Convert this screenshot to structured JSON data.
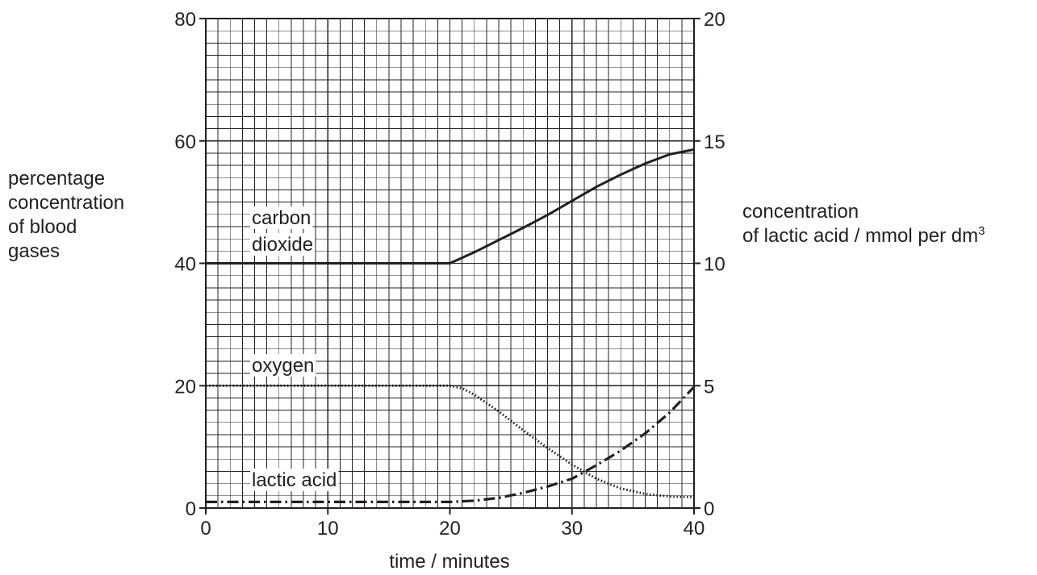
{
  "chart_data": {
    "type": "line",
    "xlabel": "time / minutes",
    "ylabel_left": [
      "percentage",
      "concentration",
      "of blood",
      "gases"
    ],
    "ylabel_right": [
      "concentration",
      "of lactic acid / mmol per dm",
      "3"
    ],
    "x_range": [
      0,
      40
    ],
    "y_left_range": [
      0,
      80
    ],
    "y_right_range": [
      0,
      20
    ],
    "x_ticks": [
      "0",
      "10",
      "20",
      "30",
      "40"
    ],
    "y_left_ticks": [
      "0",
      "20",
      "40",
      "60",
      "80"
    ],
    "y_right_ticks": [
      "0",
      "5",
      "10",
      "15",
      "20"
    ],
    "grid": true,
    "series": [
      {
        "name": "carbon dioxide",
        "label": [
          "carbon",
          "dioxide"
        ],
        "axis": "left",
        "style": "solid",
        "x": [
          0,
          5,
          10,
          15,
          20,
          22,
          24,
          26,
          28,
          30,
          32,
          34,
          36,
          38,
          40
        ],
        "y": [
          40,
          40,
          40,
          40,
          40,
          41.8,
          43.8,
          45.8,
          47.9,
          50.2,
          52.5,
          54.5,
          56.3,
          57.8,
          58.6
        ]
      },
      {
        "name": "oxygen",
        "label": [
          "oxygen"
        ],
        "axis": "left",
        "style": "dotted",
        "x": [
          0,
          5,
          10,
          15,
          20,
          21,
          22,
          24,
          26,
          28,
          30,
          32,
          34,
          36,
          38,
          40
        ],
        "y": [
          20,
          20,
          20,
          20,
          20,
          19.6,
          18.5,
          15.8,
          12.7,
          9.8,
          7.1,
          4.8,
          3.2,
          2.3,
          1.9,
          1.8
        ]
      },
      {
        "name": "lactic acid",
        "label": [
          "lactic acid"
        ],
        "axis": "right",
        "style": "dash-dot",
        "x": [
          0,
          5,
          10,
          15,
          20,
          22,
          24,
          26,
          28,
          30,
          32,
          34,
          36,
          38,
          40
        ],
        "y": [
          0.25,
          0.25,
          0.25,
          0.25,
          0.25,
          0.3,
          0.42,
          0.62,
          0.88,
          1.2,
          1.75,
          2.35,
          3.05,
          3.9,
          4.95
        ]
      }
    ]
  }
}
